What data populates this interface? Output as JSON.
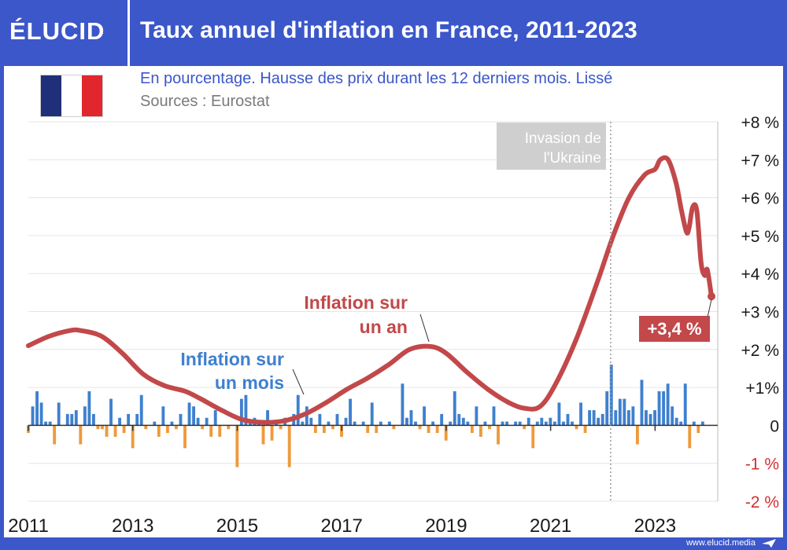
{
  "header": {
    "logo": "ÉLUCID",
    "title": "Taux annuel d'inflation en France, 2011-2023"
  },
  "subtitle": "En pourcentage. Hausse des prix durant les 12 derniers mois. Lissé",
  "sources": "Sources : Eurostat",
  "footer": {
    "url": "www.elucid.media"
  },
  "colors": {
    "brand": "#3b57c9",
    "annual_line": "#c2484a",
    "monthly_positive": "#3f80cf",
    "monthly_negative": "#ee9a3c",
    "negative_tick": "#d32f2f",
    "flag_blue": "#1f2f7a",
    "flag_white": "#ffffff",
    "flag_red": "#e1262d"
  },
  "chart_data": {
    "type": "line+bar",
    "title": "Taux annuel d'inflation en France, 2011-2023",
    "ylim": [
      -2,
      8
    ],
    "y_ticks": [
      "+8 %",
      "+7 %",
      "+6 %",
      "+5 %",
      "+4 %",
      "+3 %",
      "+2 %",
      "+1%",
      "0",
      "-1 %",
      "-2 %"
    ],
    "y_tick_values": [
      8,
      7,
      6,
      5,
      4,
      3,
      2,
      1,
      0,
      -1,
      -2
    ],
    "x_range": [
      2011,
      2024.2
    ],
    "x_ticks": [
      "2011",
      "2013",
      "2015",
      "2017",
      "2019",
      "2021",
      "2023"
    ],
    "x_tick_values": [
      2011,
      2013,
      2015,
      2017,
      2019,
      2021,
      2023
    ],
    "grid": true,
    "series": [
      {
        "name": "Inflation sur un an",
        "kind": "line",
        "points": [
          [
            2011.0,
            2.1
          ],
          [
            2011.4,
            2.35
          ],
          [
            2011.8,
            2.5
          ],
          [
            2012.0,
            2.5
          ],
          [
            2012.4,
            2.35
          ],
          [
            2012.8,
            1.9
          ],
          [
            2013.2,
            1.35
          ],
          [
            2013.6,
            1.05
          ],
          [
            2014.0,
            0.9
          ],
          [
            2014.3,
            0.7
          ],
          [
            2014.7,
            0.4
          ],
          [
            2015.1,
            0.15
          ],
          [
            2015.5,
            0.08
          ],
          [
            2015.9,
            0.12
          ],
          [
            2016.3,
            0.3
          ],
          [
            2016.7,
            0.6
          ],
          [
            2017.1,
            0.95
          ],
          [
            2017.5,
            1.25
          ],
          [
            2017.9,
            1.6
          ],
          [
            2018.3,
            2.0
          ],
          [
            2018.7,
            2.08
          ],
          [
            2019.0,
            1.9
          ],
          [
            2019.4,
            1.4
          ],
          [
            2019.8,
            0.95
          ],
          [
            2020.2,
            0.6
          ],
          [
            2020.5,
            0.45
          ],
          [
            2020.8,
            0.5
          ],
          [
            2021.1,
            1.1
          ],
          [
            2021.5,
            2.3
          ],
          [
            2021.9,
            3.8
          ],
          [
            2022.2,
            5.0
          ],
          [
            2022.5,
            6.0
          ],
          [
            2022.8,
            6.6
          ],
          [
            2023.0,
            6.75
          ],
          [
            2023.1,
            7.0
          ],
          [
            2023.25,
            7.0
          ],
          [
            2023.4,
            6.4
          ],
          [
            2023.5,
            5.7
          ],
          [
            2023.6,
            5.1
          ],
          [
            2023.65,
            5.2
          ],
          [
            2023.72,
            5.75
          ],
          [
            2023.8,
            5.65
          ],
          [
            2023.88,
            4.3
          ],
          [
            2023.95,
            3.95
          ],
          [
            2024.0,
            4.1
          ],
          [
            2024.08,
            3.4
          ]
        ]
      },
      {
        "name": "Inflation sur un mois",
        "kind": "bar",
        "x_start": 2011.0,
        "step": 0.0833,
        "values": [
          -0.2,
          0.5,
          0.9,
          0.6,
          0.1,
          0.1,
          -0.5,
          0.6,
          0.0,
          0.3,
          0.3,
          0.4,
          -0.5,
          0.5,
          0.9,
          0.3,
          -0.1,
          -0.1,
          -0.3,
          0.7,
          -0.3,
          0.2,
          -0.2,
          0.3,
          -0.6,
          0.3,
          0.8,
          -0.1,
          0.0,
          0.1,
          -0.3,
          0.5,
          -0.2,
          0.1,
          -0.1,
          0.3,
          -0.6,
          0.6,
          0.5,
          0.2,
          -0.1,
          0.2,
          -0.3,
          0.4,
          -0.3,
          0.0,
          -0.1,
          0.0,
          -1.1,
          0.7,
          0.8,
          0.1,
          0.2,
          0.1,
          -0.5,
          0.4,
          -0.4,
          0.1,
          -0.1,
          0.2,
          -1.1,
          0.3,
          0.8,
          0.1,
          0.5,
          0.2,
          -0.2,
          0.3,
          -0.2,
          0.1,
          -0.1,
          0.3,
          -0.3,
          0.2,
          0.7,
          0.1,
          0.0,
          0.1,
          -0.2,
          0.6,
          -0.2,
          0.1,
          0.0,
          0.1,
          -0.1,
          0.0,
          1.1,
          0.2,
          0.4,
          0.1,
          -0.1,
          0.5,
          -0.2,
          0.1,
          -0.2,
          0.3,
          -0.4,
          0.1,
          0.9,
          0.3,
          0.2,
          0.1,
          -0.2,
          0.5,
          -0.3,
          0.1,
          -0.1,
          0.5,
          -0.5,
          0.1,
          0.1,
          0.0,
          0.1,
          0.1,
          -0.1,
          0.2,
          -0.6,
          0.1,
          0.2,
          0.1,
          0.2,
          0.1,
          0.6,
          0.1,
          0.3,
          0.1,
          -0.1,
          0.6,
          -0.2,
          0.4,
          0.4,
          0.2,
          0.3,
          0.9,
          1.6,
          0.4,
          0.7,
          0.7,
          0.4,
          0.5,
          -0.5,
          1.2,
          0.4,
          0.3,
          0.4,
          0.9,
          0.9,
          1.1,
          0.5,
          0.2,
          0.1,
          1.1,
          -0.6,
          0.1,
          -0.2,
          0.1
        ]
      }
    ],
    "annotations": [
      {
        "text_lines": [
          "Inflation sur",
          "un an"
        ],
        "target": [
          2018.7,
          2.08
        ]
      },
      {
        "text_lines": [
          "Inflation sur",
          "un mois"
        ],
        "target": [
          2016.2,
          0.75
        ]
      },
      {
        "text_lines": [
          "Invasion de",
          "l'Ukraine"
        ],
        "x": 2022.15
      }
    ],
    "last_value_label": "+3,4 %"
  }
}
